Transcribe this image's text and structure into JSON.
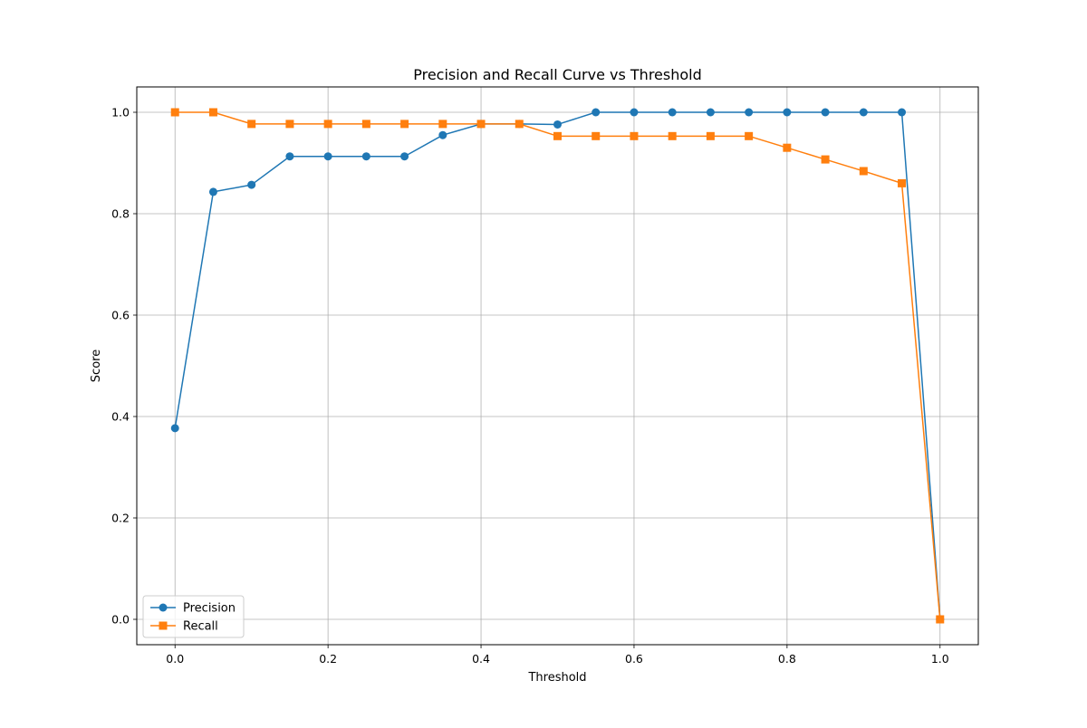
{
  "chart_data": {
    "type": "line",
    "title": "Precision and Recall Curve vs Threshold",
    "xlabel": "Threshold",
    "ylabel": "Score",
    "xlim": [
      -0.05,
      1.05
    ],
    "ylim": [
      -0.05,
      1.05
    ],
    "xticks": [
      0.0,
      0.2,
      0.4,
      0.6,
      0.8,
      1.0
    ],
    "xtick_labels": [
      "0.0",
      "0.2",
      "0.4",
      "0.6",
      "0.8",
      "1.0"
    ],
    "yticks": [
      0.0,
      0.2,
      0.4,
      0.6,
      0.8,
      1.0
    ],
    "ytick_labels": [
      "0.0",
      "0.2",
      "0.4",
      "0.6",
      "0.8",
      "1.0"
    ],
    "grid": true,
    "legend": "lower-left",
    "x": [
      0.0,
      0.05,
      0.1,
      0.15,
      0.2,
      0.25,
      0.3,
      0.35,
      0.4,
      0.45,
      0.5,
      0.55,
      0.6,
      0.65,
      0.7,
      0.75,
      0.8,
      0.85,
      0.9,
      0.95,
      1.0
    ],
    "series": [
      {
        "name": "Precision",
        "marker": "circle",
        "color": "#1f77b4",
        "values": [
          0.377,
          0.843,
          0.857,
          0.913,
          0.913,
          0.913,
          0.913,
          0.955,
          0.977,
          0.977,
          0.976,
          1.0,
          1.0,
          1.0,
          1.0,
          1.0,
          1.0,
          1.0,
          1.0,
          1.0,
          0.0
        ]
      },
      {
        "name": "Recall",
        "marker": "square",
        "color": "#ff7f0e",
        "values": [
          1.0,
          1.0,
          0.977,
          0.977,
          0.977,
          0.977,
          0.977,
          0.977,
          0.977,
          0.977,
          0.953,
          0.953,
          0.953,
          0.953,
          0.953,
          0.953,
          0.93,
          0.907,
          0.884,
          0.86,
          0.0
        ]
      }
    ]
  }
}
